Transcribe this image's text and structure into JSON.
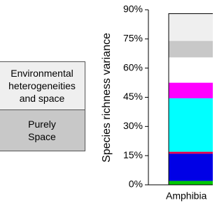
{
  "chart_data": {
    "type": "stacked-bar",
    "ylabel": "Species richness variance",
    "categories": [
      "Amphibia"
    ],
    "series": [
      {
        "color": "#00c800",
        "values": [
          2
        ]
      },
      {
        "color": "#0000e6",
        "values": [
          14
        ]
      },
      {
        "color": "#e6004c",
        "values": [
          1
        ]
      },
      {
        "color": "#00ffff",
        "values": [
          27.5
        ]
      },
      {
        "color": "#ff00ff",
        "values": [
          8
        ]
      },
      {
        "color": "#ffffff",
        "values": [
          13
        ]
      },
      {
        "name": "Purely Space",
        "color": "#c8c8c8",
        "values": [
          8.5
        ]
      },
      {
        "name": "Environmental heterogeneities and space",
        "color": "#efefef",
        "values": [
          14
        ]
      }
    ],
    "ylim": [
      0,
      90
    ],
    "yticks": [
      {
        "value": 0,
        "label": "0%"
      },
      {
        "value": 15,
        "label": "15%"
      },
      {
        "value": 30,
        "label": "30%"
      },
      {
        "value": 45,
        "label": "45%"
      },
      {
        "value": 60,
        "label": "60%"
      },
      {
        "value": 75,
        "label": "75%"
      },
      {
        "value": 90,
        "label": "90%"
      }
    ]
  }
}
